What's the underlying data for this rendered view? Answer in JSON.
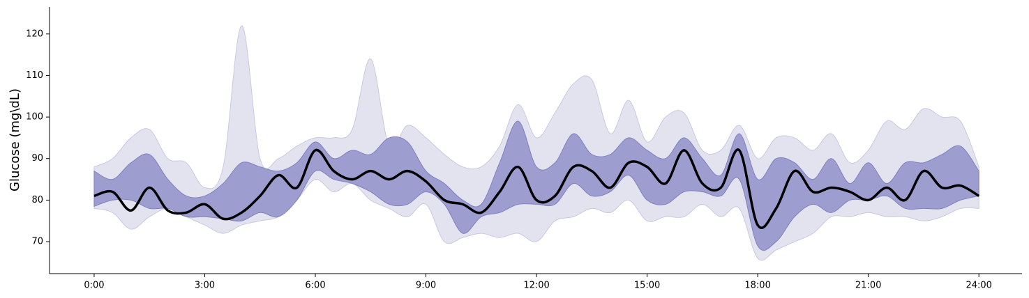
{
  "chart_data": {
    "type": "band-line",
    "y_label": "Glucose (mg\\dL)",
    "x": [
      0,
      0.5,
      1,
      1.5,
      2,
      2.5,
      3,
      3.5,
      4,
      4.5,
      5,
      5.5,
      6,
      6.5,
      7,
      7.5,
      8,
      8.5,
      9,
      9.5,
      10,
      10.5,
      11,
      11.5,
      12,
      12.5,
      13,
      13.5,
      14,
      14.5,
      15,
      15.5,
      16,
      16.5,
      17,
      17.5,
      18,
      18.5,
      19,
      19.5,
      20,
      20.5,
      21,
      21.5,
      22,
      22.5,
      23,
      23.5,
      24
    ],
    "bands": [
      {
        "color": "#e3e3f0",
        "edge": "#c8c8e0",
        "low": [
          78,
          77,
          73,
          76,
          78,
          76,
          74,
          72,
          74,
          75,
          76,
          80,
          85,
          82,
          84,
          80,
          78,
          76,
          79,
          70,
          71,
          72,
          71,
          72,
          70,
          75,
          76,
          78,
          77,
          80,
          75,
          76,
          76,
          79,
          76,
          78,
          66,
          68,
          70,
          72,
          76,
          76,
          77,
          76,
          76,
          75,
          76,
          78,
          78
        ],
        "high": [
          88,
          90,
          95,
          97,
          90,
          89,
          83,
          88,
          122,
          90,
          90,
          93,
          95,
          95,
          97,
          114,
          93,
          98,
          95,
          91,
          88,
          88,
          93,
          103,
          95,
          101,
          108,
          109,
          96,
          104,
          94,
          100,
          101,
          92,
          92,
          98,
          90,
          95,
          95,
          92,
          96,
          89,
          92,
          99,
          97,
          102,
          100,
          99,
          88
        ]
      },
      {
        "color": "#9d9dd0",
        "edge": "#8080c0",
        "low": [
          78.5,
          80,
          80,
          78,
          78,
          76,
          76,
          75.5,
          75,
          77,
          76,
          80,
          87,
          85,
          84,
          82,
          79,
          79,
          82,
          79,
          72,
          76,
          77,
          79,
          79,
          79,
          84,
          81,
          82,
          86,
          80,
          79,
          82,
          82,
          81,
          85,
          69,
          70,
          76,
          79,
          77,
          80,
          80,
          81,
          78,
          78,
          78,
          80,
          81
        ],
        "high": [
          87,
          85,
          89,
          91,
          85,
          81,
          81,
          84,
          89,
          88,
          87,
          89,
          94,
          90,
          92,
          91,
          95,
          94,
          87,
          84,
          80,
          79,
          89,
          99,
          88,
          89,
          96,
          91,
          91,
          95,
          92,
          90,
          95,
          90,
          86,
          96,
          85,
          90,
          89,
          85,
          90,
          84,
          89,
          84,
          89,
          89,
          91,
          93,
          87
        ]
      }
    ],
    "line": {
      "color": "#000000",
      "values": [
        81,
        82,
        77.5,
        83,
        77.5,
        77,
        79,
        75.5,
        77,
        81,
        86,
        83,
        92,
        87,
        85,
        87,
        85,
        87,
        84.5,
        80,
        79,
        77,
        82,
        88,
        80,
        81,
        88,
        87,
        83,
        89,
        88,
        84,
        92,
        84,
        83,
        92,
        74,
        78,
        87,
        82,
        83,
        82,
        80,
        83,
        80,
        87,
        83,
        83.5,
        81
      ]
    },
    "xlim": [
      -1.21,
      25.17
    ],
    "ylim": [
      62.3,
      126.5
    ],
    "xticks": [
      {
        "value": 0,
        "label": "0:00"
      },
      {
        "value": 3,
        "label": "3:00"
      },
      {
        "value": 6,
        "label": "6:00"
      },
      {
        "value": 9,
        "label": "9:00"
      },
      {
        "value": 12,
        "label": "12:00"
      },
      {
        "value": 15,
        "label": "15:00"
      },
      {
        "value": 18,
        "label": "18:00"
      },
      {
        "value": 21,
        "label": "21:00"
      },
      {
        "value": 24,
        "label": "24:00"
      }
    ],
    "yticks": [
      70,
      80,
      90,
      100,
      110,
      120
    ]
  }
}
